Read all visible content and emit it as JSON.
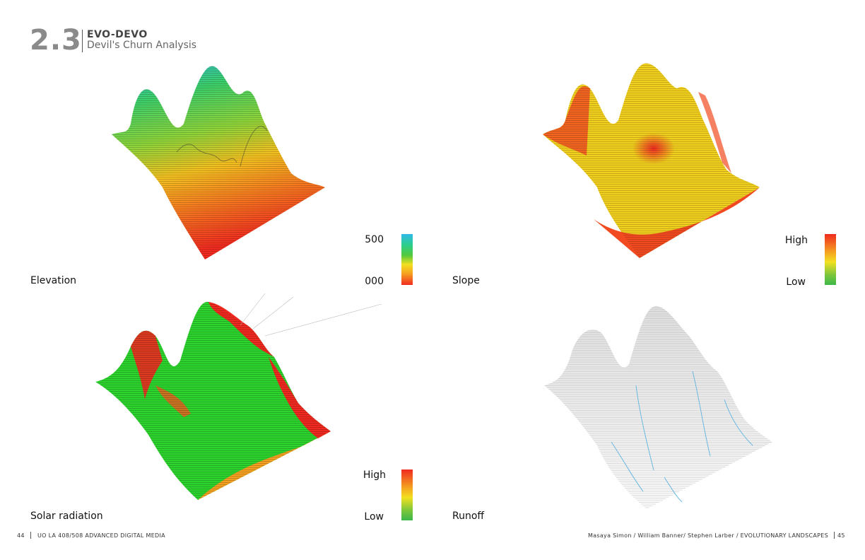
{
  "header": {
    "section_number": "2.3",
    "title": "EVO-DEVO",
    "subtitle": "Devil's Churn Analysis"
  },
  "panels": {
    "elevation": {
      "label": "Elevation",
      "scale_top": "500",
      "scale_bottom": "000"
    },
    "slope": {
      "label": "Slope",
      "scale_top": "High",
      "scale_bottom": "Low"
    },
    "solar": {
      "label": "Solar radiation",
      "scale_top": "High",
      "scale_bottom": "Low"
    },
    "runoff": {
      "label": "Runoff"
    }
  },
  "colors": {
    "blue": "#2fb8e6",
    "green": "#3ccf3c",
    "yellow": "#f2e020",
    "orange": "#f5a020",
    "red": "#f02a20",
    "runoff_blue": "#6ab8e0"
  },
  "footer": {
    "left_page": "44",
    "left_text": "UO LA 408/508 ADVANCED DIGITAL MEDIA",
    "right_text": "Masaya Simon  /  William Banner/  Stephen Larber  /  EVOLUTIONARY LANDSCAPES",
    "right_page": "45"
  }
}
